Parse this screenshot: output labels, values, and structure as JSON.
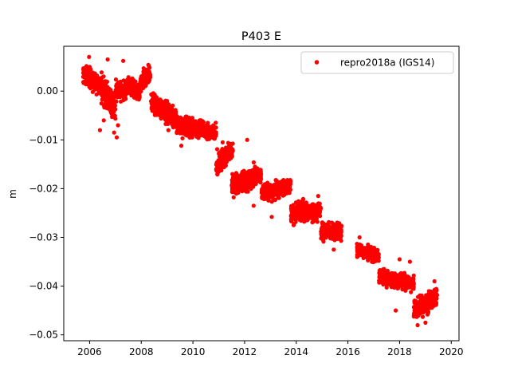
{
  "chart_data": {
    "type": "scatter",
    "title": "P403 E",
    "xlabel": "",
    "ylabel": "m",
    "xlim": [
      2005.0,
      2020.3
    ],
    "ylim": [
      -0.0512,
      0.0092
    ],
    "x_ticks": [
      2006,
      2008,
      2010,
      2012,
      2014,
      2016,
      2018,
      2020
    ],
    "x_tick_labels": [
      "2006",
      "2008",
      "2010",
      "2012",
      "2014",
      "2016",
      "2018",
      "2020"
    ],
    "y_ticks": [
      0.0,
      -0.01,
      -0.02,
      -0.03,
      -0.04,
      -0.05
    ],
    "y_tick_labels": [
      "0.00",
      "−0.01",
      "−0.02",
      "−0.03",
      "−0.04",
      "−0.05"
    ],
    "grid": false,
    "legend_position": "top-right",
    "series": [
      {
        "name": "repro2018a (IGS14)",
        "color": "#ff0000",
        "marker": "circle",
        "segments": [
          {
            "x": [
              2005.75,
              2006.45
            ],
            "y": [
              0.0035,
              0.001
            ],
            "spread": 0.0018
          },
          {
            "x": [
              2006.45,
              2007.0
            ],
            "y": [
              0.0005,
              -0.0035
            ],
            "spread": 0.0025
          },
          {
            "x": [
              2007.0,
              2007.4
            ],
            "y": [
              0.0005,
              -0.0005
            ],
            "spread": 0.002
          },
          {
            "x": [
              2007.4,
              2007.95
            ],
            "y": [
              0.001,
              0.0
            ],
            "spread": 0.0015
          },
          {
            "x": [
              2007.95,
              2008.35
            ],
            "y": [
              0.0015,
              0.0035
            ],
            "spread": 0.0015
          },
          {
            "x": [
              2008.35,
              2009.35
            ],
            "y": [
              -0.002,
              -0.0055
            ],
            "spread": 0.0018
          },
          {
            "x": [
              2009.35,
              2010.9
            ],
            "y": [
              -0.007,
              -0.0085
            ],
            "spread": 0.0016
          },
          {
            "x": [
              2010.9,
              2011.55
            ],
            "y": [
              -0.015,
              -0.012
            ],
            "spread": 0.0018
          },
          {
            "x": [
              2011.5,
              2012.65
            ],
            "y": [
              -0.0195,
              -0.017
            ],
            "spread": 0.0018
          },
          {
            "x": [
              2012.65,
              2013.8
            ],
            "y": [
              -0.021,
              -0.0195
            ],
            "spread": 0.0016
          },
          {
            "x": [
              2013.8,
              2014.95
            ],
            "y": [
              -0.025,
              -0.0245
            ],
            "spread": 0.0017
          },
          {
            "x": [
              2014.95,
              2015.75
            ],
            "y": [
              -0.0285,
              -0.029
            ],
            "spread": 0.0016
          },
          {
            "x": [
              2016.35,
              2017.2
            ],
            "y": [
              -0.0325,
              -0.034
            ],
            "spread": 0.0012
          },
          {
            "x": [
              2017.2,
              2018.55
            ],
            "y": [
              -0.038,
              -0.0395
            ],
            "spread": 0.0014
          },
          {
            "x": [
              2018.55,
              2019.45
            ],
            "y": [
              -0.045,
              -0.042
            ],
            "spread": 0.0018
          }
        ],
        "outliers": [
          {
            "x": 2006.4,
            "y": -0.008
          },
          {
            "x": 2006.55,
            "y": -0.006
          },
          {
            "x": 2006.95,
            "y": -0.0085
          },
          {
            "x": 2007.05,
            "y": -0.0095
          },
          {
            "x": 2007.1,
            "y": -0.007
          },
          {
            "x": 2007.3,
            "y": 0.0062
          },
          {
            "x": 2005.98,
            "y": 0.007
          },
          {
            "x": 2006.7,
            "y": 0.0065
          },
          {
            "x": 2009.05,
            "y": -0.008
          },
          {
            "x": 2009.55,
            "y": -0.0112
          },
          {
            "x": 2011.15,
            "y": -0.0105
          },
          {
            "x": 2012.1,
            "y": -0.01
          },
          {
            "x": 2012.35,
            "y": -0.0235
          },
          {
            "x": 2013.05,
            "y": -0.0258
          },
          {
            "x": 2013.9,
            "y": -0.0275
          },
          {
            "x": 2014.85,
            "y": -0.0215
          },
          {
            "x": 2015.45,
            "y": -0.0325
          },
          {
            "x": 2016.45,
            "y": -0.03
          },
          {
            "x": 2017.85,
            "y": -0.045
          },
          {
            "x": 2018.0,
            "y": -0.0345
          },
          {
            "x": 2018.4,
            "y": -0.035
          },
          {
            "x": 2018.7,
            "y": -0.048
          },
          {
            "x": 2019.0,
            "y": -0.0475
          },
          {
            "x": 2019.35,
            "y": -0.039
          }
        ]
      }
    ]
  }
}
